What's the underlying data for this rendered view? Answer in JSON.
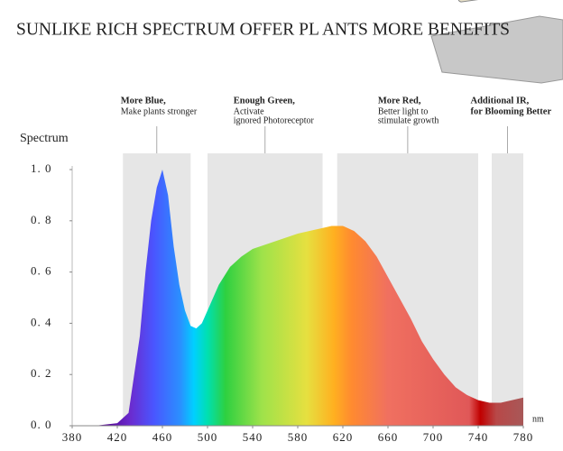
{
  "chart_data": {
    "type": "area",
    "title": "SUNLIKE RICH SPECTRUM OFFER PL ANTS MORE BENEFITS",
    "y_label": "Spectrum",
    "x_unit": "nm",
    "x": [
      380,
      400,
      420,
      430,
      440,
      445,
      450,
      455,
      460,
      465,
      470,
      475,
      480,
      485,
      490,
      495,
      500,
      510,
      520,
      530,
      540,
      560,
      580,
      600,
      610,
      620,
      630,
      640,
      650,
      660,
      670,
      680,
      690,
      700,
      710,
      720,
      730,
      740,
      750,
      760,
      770,
      780
    ],
    "values": [
      0,
      0,
      0.01,
      0.05,
      0.35,
      0.6,
      0.8,
      0.93,
      1.0,
      0.9,
      0.7,
      0.55,
      0.45,
      0.39,
      0.38,
      0.4,
      0.45,
      0.55,
      0.62,
      0.66,
      0.69,
      0.72,
      0.75,
      0.77,
      0.78,
      0.78,
      0.76,
      0.72,
      0.66,
      0.58,
      0.5,
      0.42,
      0.33,
      0.26,
      0.2,
      0.15,
      0.12,
      0.1,
      0.09,
      0.09,
      0.1,
      0.11
    ],
    "xlim": [
      380,
      780
    ],
    "xticks": [
      380,
      420,
      460,
      500,
      540,
      580,
      620,
      660,
      700,
      740,
      780
    ],
    "ylim": [
      0,
      1
    ],
    "yticks": [
      {
        "value": 0,
        "label": "0. 0"
      },
      {
        "value": 0.2,
        "label": "0. 2"
      },
      {
        "value": 0.4,
        "label": "0. 4"
      },
      {
        "value": 0.6,
        "label": "0. 6"
      },
      {
        "value": 0.8,
        "label": "0. 8"
      },
      {
        "value": 1,
        "label": "1. 0"
      }
    ],
    "highlights": [
      {
        "range": [
          425,
          485
        ],
        "title": "More Blue,",
        "text": [
          "Make plants stronger"
        ],
        "bold": false
      },
      {
        "range": [
          500,
          602
        ],
        "title": "Enough Green,",
        "text": [
          "Activate",
          "ignored Photoreceptor"
        ],
        "bold": false
      },
      {
        "range": [
          615,
          740
        ],
        "title": "More Red,",
        "text": [
          "Better light to",
          "stimulate growth"
        ],
        "bold": false
      },
      {
        "range": [
          752,
          780
        ],
        "title": "Additional IR,",
        "text": [
          "for Blooming Better"
        ],
        "bold": true
      }
    ]
  }
}
